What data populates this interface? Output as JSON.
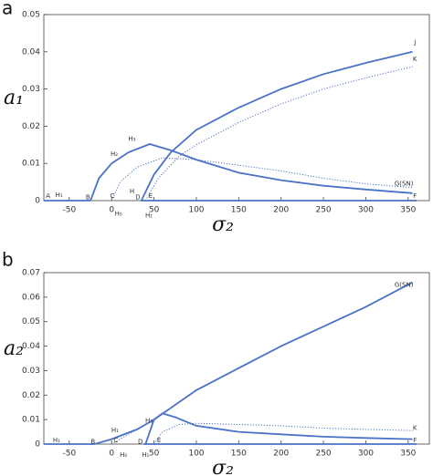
{
  "chart_data": [
    {
      "type": "line",
      "panel_label": "a",
      "ylabel": "a₁",
      "xlabel": "σ₂",
      "xlim": [
        -80,
        375
      ],
      "ylim": [
        0,
        0.05
      ],
      "xticks": [
        -50,
        0,
        50,
        100,
        150,
        200,
        250,
        300,
        350
      ],
      "yticks": [
        0,
        0.01,
        0.02,
        0.03,
        0.04,
        0.05
      ],
      "series": [
        {
          "color": "#4a72c8",
          "style": "solid",
          "x": [
            -80,
            -25
          ],
          "values": [
            0,
            0
          ]
        },
        {
          "color": "#4a72c8",
          "style": "solid",
          "x": [
            35,
            360
          ],
          "values": [
            0,
            0
          ]
        },
        {
          "color": "#4a72c8",
          "style": "solid",
          "x": [
            -25,
            -15,
            0,
            20,
            45,
            70,
            100,
            150,
            200,
            250,
            300,
            355
          ],
          "values": [
            0,
            0.006,
            0.01,
            0.013,
            0.0152,
            0.0135,
            0.011,
            0.0075,
            0.0055,
            0.004,
            0.003,
            0.002
          ]
        },
        {
          "color": "#4a72c8",
          "style": "solid",
          "x": [
            35,
            50,
            70,
            100,
            150,
            200,
            250,
            300,
            355
          ],
          "values": [
            0,
            0.007,
            0.013,
            0.019,
            0.025,
            0.03,
            0.034,
            0.037,
            0.04
          ]
        },
        {
          "color": "#4a72c8",
          "style": "dotted",
          "x": [
            40,
            55,
            80,
            100,
            150,
            200,
            250,
            300,
            355
          ],
          "values": [
            0,
            0.006,
            0.012,
            0.015,
            0.021,
            0.026,
            0.03,
            0.033,
            0.036
          ]
        },
        {
          "color": "#4a72c8",
          "style": "dotted",
          "x": [
            0,
            10,
            30,
            60,
            100,
            150,
            200,
            250,
            300,
            355
          ],
          "values": [
            0,
            0.005,
            0.009,
            0.0115,
            0.011,
            0.0095,
            0.008,
            0.006,
            0.0045,
            0.0035
          ]
        }
      ],
      "annotations": [
        {
          "text": "A",
          "x": -75,
          "y": 0.0012
        },
        {
          "text": "H₁",
          "x": -62,
          "y": 0.0015
        },
        {
          "text": "B",
          "x": -28,
          "y": 0.0008
        },
        {
          "text": "C",
          "x": 1,
          "y": 0.0012
        },
        {
          "text": "H₀",
          "x": 8,
          "y": -0.0035
        },
        {
          "text": "D",
          "x": 31,
          "y": 0.0008
        },
        {
          "text": "H",
          "x": 24,
          "y": 0.0025
        },
        {
          "text": "E",
          "x": 46,
          "y": 0.0012
        },
        {
          "text": "H₁",
          "x": 44,
          "y": -0.004
        },
        {
          "text": "H₂",
          "x": 3,
          "y": 0.0125
        },
        {
          "text": "H₃",
          "x": 24,
          "y": 0.0165
        },
        {
          "text": "J",
          "x": 358,
          "y": 0.0425
        },
        {
          "text": "K",
          "x": 358,
          "y": 0.038
        },
        {
          "text": "G(SN)",
          "x": 345,
          "y": 0.0045
        },
        {
          "text": "F",
          "x": 358,
          "y": 0.0012
        }
      ]
    },
    {
      "type": "line",
      "panel_label": "b",
      "ylabel": "a₂",
      "xlabel": "σ₂",
      "xlim": [
        -80,
        375
      ],
      "ylim": [
        0,
        0.07
      ],
      "xticks": [
        -50,
        0,
        50,
        100,
        150,
        200,
        250,
        300,
        350
      ],
      "yticks": [
        0,
        0.01,
        0.02,
        0.03,
        0.04,
        0.05,
        0.06,
        0.07
      ],
      "series": [
        {
          "color": "#4a72c8",
          "style": "solid",
          "x": [
            -80,
            -20,
            0,
            30,
            50,
            75,
            100,
            150,
            200,
            250,
            300,
            355
          ],
          "values": [
            0,
            0,
            0.002,
            0.006,
            0.01,
            0.016,
            0.022,
            0.031,
            0.04,
            0.048,
            0.056,
            0.066
          ]
        },
        {
          "color": "#4a72c8",
          "style": "solid",
          "x": [
            38,
            360
          ],
          "values": [
            0,
            0
          ]
        },
        {
          "color": "#4a72c8",
          "style": "solid",
          "x": [
            40,
            50,
            60,
            75,
            100,
            150,
            200,
            250,
            300,
            355
          ],
          "values": [
            0,
            0.01,
            0.0125,
            0.011,
            0.0075,
            0.005,
            0.004,
            0.003,
            0.0025,
            0.002
          ]
        },
        {
          "color": "#4a72c8",
          "style": "dotted",
          "x": [
            0,
            20,
            40,
            55
          ],
          "values": [
            0,
            0.004,
            0.008,
            0.011
          ]
        },
        {
          "color": "#4a72c8",
          "style": "dotted",
          "x": [
            50,
            60,
            80,
            100,
            150,
            200,
            250,
            300,
            355
          ],
          "values": [
            0,
            0.005,
            0.008,
            0.0085,
            0.008,
            0.0075,
            0.0065,
            0.006,
            0.0055
          ]
        }
      ],
      "annotations": [
        {
          "text": "H₁",
          "x": -65,
          "y": 0.0015
        },
        {
          "text": "B",
          "x": -22,
          "y": 0.001
        },
        {
          "text": "H₁",
          "x": 4,
          "y": 0.0055
        },
        {
          "text": "C",
          "x": 5,
          "y": 0.0015
        },
        {
          "text": "H₀",
          "x": 14,
          "y": -0.0045
        },
        {
          "text": "D",
          "x": 34,
          "y": 0.001
        },
        {
          "text": "H₁",
          "x": 40,
          "y": -0.0045
        },
        {
          "text": "H₃",
          "x": 44,
          "y": 0.0095
        },
        {
          "text": "E",
          "x": 56,
          "y": 0.0015
        },
        {
          "text": "G(SN)",
          "x": 345,
          "y": 0.065
        },
        {
          "text": "K",
          "x": 358,
          "y": 0.0065
        },
        {
          "text": "F",
          "x": 358,
          "y": 0.0015
        }
      ]
    }
  ]
}
